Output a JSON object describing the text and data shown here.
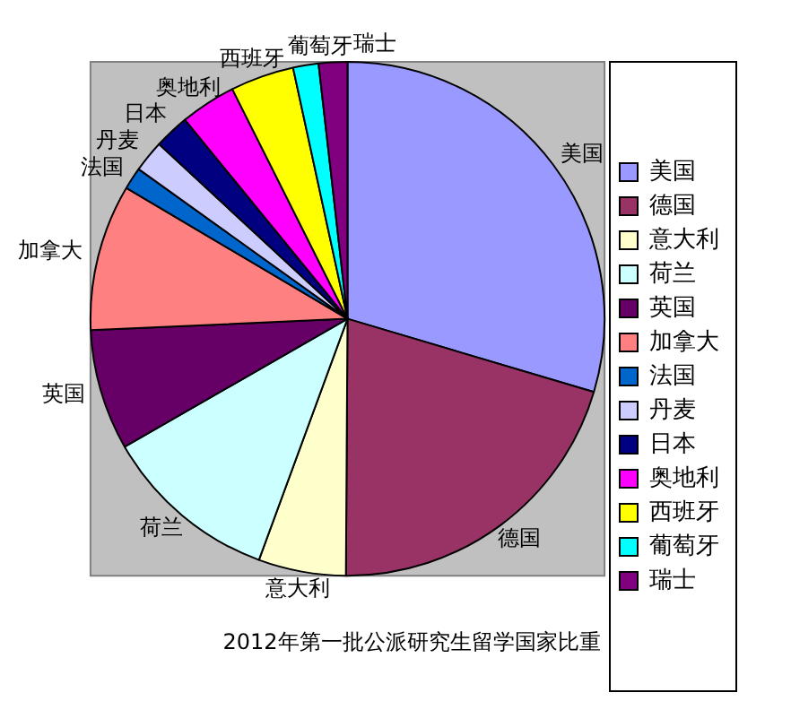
{
  "chart_data": {
    "type": "pie",
    "title": "2012年第一批公派研究生留学国家比重",
    "categories": [
      "美国",
      "德国",
      "意大利",
      "荷兰",
      "英国",
      "加拿大",
      "法国",
      "丹麦",
      "日本",
      "奥地利",
      "西班牙",
      "葡萄牙",
      "瑞士"
    ],
    "values": [
      29.6,
      20.5,
      5.5,
      11.1,
      7.6,
      9.2,
      1.4,
      2,
      2.2,
      3.5,
      4,
      1.6,
      1.8
    ],
    "colors": [
      "#9999ff",
      "#993366",
      "#ffffcc",
      "#ccffff",
      "#660066",
      "#ff8080",
      "#0066cc",
      "#ccccff",
      "#000080",
      "#ff00ff",
      "#ffff00",
      "#00ffff",
      "#800080"
    ],
    "legend": "right"
  }
}
